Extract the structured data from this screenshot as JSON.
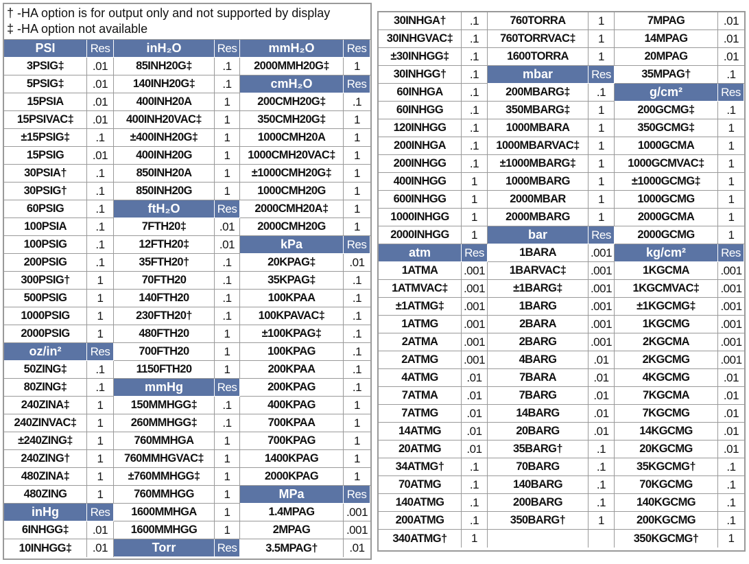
{
  "notes": [
    "† -HA option is for output only and not supported by display",
    "‡ -HA option not available"
  ],
  "header_color": "#5b74a4",
  "left": {
    "groups": [
      {
        "items": [
          {
            "label": "PSI",
            "res": "Res",
            "header": true
          },
          {
            "label": "3PSIG‡",
            "res": ".01"
          },
          {
            "label": "5PSIG‡",
            "res": ".01"
          },
          {
            "label": "15PSIA",
            "res": ".01"
          },
          {
            "label": "15PSIVAC‡",
            "res": ".01"
          },
          {
            "label": "±15PSIG‡",
            "res": ".1"
          },
          {
            "label": "15PSIG",
            "res": ".01"
          },
          {
            "label": "30PSIA†",
            "res": ".1"
          },
          {
            "label": "30PSIG†",
            "res": ".1"
          },
          {
            "label": "60PSIG",
            "res": ".1"
          },
          {
            "label": "100PSIA",
            "res": ".1"
          },
          {
            "label": "100PSIG",
            "res": ".1"
          },
          {
            "label": "200PSIG",
            "res": ".1"
          },
          {
            "label": "300PSIG†",
            "res": "1"
          },
          {
            "label": "500PSIG",
            "res": "1"
          },
          {
            "label": "1000PSIG",
            "res": "1"
          },
          {
            "label": "2000PSIG",
            "res": "1"
          },
          {
            "label": "oz/in²",
            "res": "Res",
            "header": true
          },
          {
            "label": "50ZING‡",
            "res": ".1"
          },
          {
            "label": "80ZING‡",
            "res": ".1"
          },
          {
            "label": "240ZINA‡",
            "res": "1"
          },
          {
            "label": "240ZINVAC‡",
            "res": "1"
          },
          {
            "label": "±240ZING‡",
            "res": "1"
          },
          {
            "label": "240ZING†",
            "res": "1"
          },
          {
            "label": "480ZINA‡",
            "res": "1"
          },
          {
            "label": "480ZING",
            "res": "1"
          },
          {
            "label": "inHg",
            "res": "Res",
            "header": true
          },
          {
            "label": "6INHGG‡",
            "res": ".01"
          },
          {
            "label": "10INHGG‡",
            "res": ".01"
          }
        ]
      },
      {
        "items": [
          {
            "label": "inH₂O",
            "res": "Res",
            "header": true
          },
          {
            "label": "85INH20G‡",
            "res": ".1"
          },
          {
            "label": "140INH20G‡",
            "res": ".1"
          },
          {
            "label": "400INH20A",
            "res": "1"
          },
          {
            "label": "400INH20VAC‡",
            "res": "1"
          },
          {
            "label": "±400INH20G‡",
            "res": "1"
          },
          {
            "label": "400INH20G",
            "res": "1"
          },
          {
            "label": "850INH20A",
            "res": "1"
          },
          {
            "label": "850INH20G",
            "res": "1"
          },
          {
            "label": "ftH₂O",
            "res": "Res",
            "header": true
          },
          {
            "label": "7FTH20‡",
            "res": ".01"
          },
          {
            "label": "12FTH20‡",
            "res": ".01"
          },
          {
            "label": "35FTH20†",
            "res": ".1"
          },
          {
            "label": "70FTH20",
            "res": ".1"
          },
          {
            "label": "140FTH20",
            "res": ".1"
          },
          {
            "label": "230FTH20†",
            "res": ".1"
          },
          {
            "label": "480FTH20",
            "res": "1"
          },
          {
            "label": "700FTH20",
            "res": "1"
          },
          {
            "label": "1150FTH20",
            "res": "1"
          },
          {
            "label": "mmHg",
            "res": "Res",
            "header": true
          },
          {
            "label": "150MMHGG‡",
            "res": ".1"
          },
          {
            "label": "260MMHGG‡",
            "res": ".1"
          },
          {
            "label": "760MMHGA",
            "res": "1"
          },
          {
            "label": "760MMHGVAC‡",
            "res": "1"
          },
          {
            "label": "±760MMHGG‡",
            "res": "1"
          },
          {
            "label": "760MMHGG",
            "res": "1"
          },
          {
            "label": "1600MMHGA",
            "res": "1"
          },
          {
            "label": "1600MMHGG",
            "res": "1"
          },
          {
            "label": "Torr",
            "res": "Res",
            "header": true
          }
        ]
      },
      {
        "items": [
          {
            "label": "mmH₂O",
            "res": "Res",
            "header": true
          },
          {
            "label": "2000MMH20G‡",
            "res": "1"
          },
          {
            "label": "cmH₂O",
            "res": "Res",
            "header": true
          },
          {
            "label": "200CMH20G‡",
            "res": ".1"
          },
          {
            "label": "350CMH20G‡",
            "res": "1"
          },
          {
            "label": "1000CMH20A",
            "res": "1"
          },
          {
            "label": "1000CMH20VAC‡",
            "res": "1"
          },
          {
            "label": "±1000CMH20G‡",
            "res": "1"
          },
          {
            "label": "1000CMH20G",
            "res": "1"
          },
          {
            "label": "2000CMH20A‡",
            "res": "1"
          },
          {
            "label": "2000CMH20G",
            "res": "1"
          },
          {
            "label": "kPa",
            "res": "Res",
            "header": true
          },
          {
            "label": "20KPAG‡",
            "res": ".01"
          },
          {
            "label": "35KPAG‡",
            "res": ".1"
          },
          {
            "label": "100KPAA",
            "res": ".1"
          },
          {
            "label": "100KPAVAC‡",
            "res": ".1"
          },
          {
            "label": "±100KPAG‡",
            "res": ".1"
          },
          {
            "label": "100KPAG",
            "res": ".1"
          },
          {
            "label": "200KPAA",
            "res": ".1"
          },
          {
            "label": "200KPAG",
            "res": ".1"
          },
          {
            "label": "400KPAG",
            "res": "1"
          },
          {
            "label": "700KPAA",
            "res": "1"
          },
          {
            "label": "700KPAG",
            "res": "1"
          },
          {
            "label": "1400KPAG",
            "res": "1"
          },
          {
            "label": "2000KPAG",
            "res": "1"
          },
          {
            "label": "MPa",
            "res": "Res",
            "header": true
          },
          {
            "label": "1.4MPAG",
            "res": ".001"
          },
          {
            "label": "2MPAG",
            "res": ".001"
          },
          {
            "label": "3.5MPAG†",
            "res": ".01"
          }
        ]
      }
    ]
  },
  "right": {
    "groups": [
      {
        "items": [
          {
            "label": "30INHGA†",
            "res": ".1"
          },
          {
            "label": "30INHGVAC‡",
            "res": ".1"
          },
          {
            "label": "±30INHGG‡",
            "res": ".1"
          },
          {
            "label": "30INHGG†",
            "res": ".1"
          },
          {
            "label": "60INHGA",
            "res": ".1"
          },
          {
            "label": "60INHGG",
            "res": ".1"
          },
          {
            "label": "120INHGG",
            "res": ".1"
          },
          {
            "label": "200INHGA",
            "res": ".1"
          },
          {
            "label": "200INHGG",
            "res": ".1"
          },
          {
            "label": "400INHGG",
            "res": "1"
          },
          {
            "label": "600INHGG",
            "res": "1"
          },
          {
            "label": "1000INHGG",
            "res": "1"
          },
          {
            "label": "2000INHGG",
            "res": "1"
          },
          {
            "label": "atm",
            "res": "Res",
            "header": true
          },
          {
            "label": "1ATMA",
            "res": ".001"
          },
          {
            "label": "1ATMVAC‡",
            "res": ".001"
          },
          {
            "label": "±1ATMG‡",
            "res": ".001"
          },
          {
            "label": "1ATMG",
            "res": ".001"
          },
          {
            "label": "2ATMA",
            "res": ".001"
          },
          {
            "label": "2ATMG",
            "res": ".001"
          },
          {
            "label": "4ATMG",
            "res": ".01"
          },
          {
            "label": "7ATMA",
            "res": ".01"
          },
          {
            "label": "7ATMG",
            "res": ".01"
          },
          {
            "label": "14ATMG",
            "res": ".01"
          },
          {
            "label": "20ATMG",
            "res": ".01"
          },
          {
            "label": "34ATMG†",
            "res": ".1"
          },
          {
            "label": "70ATMG",
            "res": ".1"
          },
          {
            "label": "140ATMG",
            "res": ".1"
          },
          {
            "label": "200ATMG",
            "res": ".1"
          },
          {
            "label": "340ATMG†",
            "res": "1"
          }
        ]
      },
      {
        "items": [
          {
            "label": "760TORRA",
            "res": "1"
          },
          {
            "label": "760TORRVAC‡",
            "res": "1"
          },
          {
            "label": "1600TORRA",
            "res": "1"
          },
          {
            "label": "mbar",
            "res": "Res",
            "header": true
          },
          {
            "label": "200MBARG‡",
            "res": ".1"
          },
          {
            "label": "350MBARG‡",
            "res": "1"
          },
          {
            "label": "1000MBARA",
            "res": "1"
          },
          {
            "label": "1000MBARVAC‡",
            "res": "1"
          },
          {
            "label": "±1000MBARG‡",
            "res": "1"
          },
          {
            "label": "1000MBARG",
            "res": "1"
          },
          {
            "label": "2000MBAR",
            "res": "1"
          },
          {
            "label": "2000MBARG",
            "res": "1"
          },
          {
            "label": "bar",
            "res": "Res",
            "header": true
          },
          {
            "label": "1BARA",
            "res": ".001"
          },
          {
            "label": "1BARVAC‡",
            "res": ".001"
          },
          {
            "label": "±1BARG‡",
            "res": ".001"
          },
          {
            "label": "1BARG",
            "res": ".001"
          },
          {
            "label": "2BARA",
            "res": ".001"
          },
          {
            "label": "2BARG",
            "res": ".001"
          },
          {
            "label": "4BARG",
            "res": ".01"
          },
          {
            "label": "7BARA",
            "res": ".01"
          },
          {
            "label": "7BARG",
            "res": ".01"
          },
          {
            "label": "14BARG",
            "res": ".01"
          },
          {
            "label": "20BARG",
            "res": ".01"
          },
          {
            "label": "35BARG†",
            "res": ".1"
          },
          {
            "label": "70BARG",
            "res": ".1"
          },
          {
            "label": "140BARG",
            "res": ".1"
          },
          {
            "label": "200BARG",
            "res": ".1"
          },
          {
            "label": "350BARG†",
            "res": "1"
          },
          {
            "label": "",
            "res": ""
          }
        ]
      },
      {
        "items": [
          {
            "label": "7MPAG",
            "res": ".01"
          },
          {
            "label": "14MPAG",
            "res": ".01"
          },
          {
            "label": "20MPAG",
            "res": ".01"
          },
          {
            "label": "35MPAG†",
            "res": ".1"
          },
          {
            "label": "g/cm²",
            "res": "Res",
            "header": true
          },
          {
            "label": "200GCMG‡",
            "res": ".1"
          },
          {
            "label": "350GCMG‡",
            "res": "1"
          },
          {
            "label": "1000GCMA",
            "res": "1"
          },
          {
            "label": "1000GCMVAC‡",
            "res": "1"
          },
          {
            "label": "±1000GCMG‡",
            "res": "1"
          },
          {
            "label": "1000GCMG",
            "res": "1"
          },
          {
            "label": "2000GCMA",
            "res": "1"
          },
          {
            "label": "2000GCMG",
            "res": "1"
          },
          {
            "label": "kg/cm²",
            "res": "Res",
            "header": true
          },
          {
            "label": "1KGCMA",
            "res": ".001"
          },
          {
            "label": "1KGCMVAC‡",
            "res": ".001"
          },
          {
            "label": "±1KGCMG‡",
            "res": ".001"
          },
          {
            "label": "1KGCMG",
            "res": ".001"
          },
          {
            "label": "2KGCMA",
            "res": ".001"
          },
          {
            "label": "2KGCMG",
            "res": ".001"
          },
          {
            "label": "4KGCMG",
            "res": ".01"
          },
          {
            "label": "7KGCMA",
            "res": ".01"
          },
          {
            "label": "7KGCMG",
            "res": ".01"
          },
          {
            "label": "14KGCMG",
            "res": ".01"
          },
          {
            "label": "20KGCMG",
            "res": ".01"
          },
          {
            "label": "35KGCMG†",
            "res": ".1"
          },
          {
            "label": "70KGCMG",
            "res": ".1"
          },
          {
            "label": "140KGCMG",
            "res": ".1"
          },
          {
            "label": "200KGCMG",
            "res": ".1"
          },
          {
            "label": "350KGCMG†",
            "res": "1"
          }
        ]
      }
    ]
  }
}
